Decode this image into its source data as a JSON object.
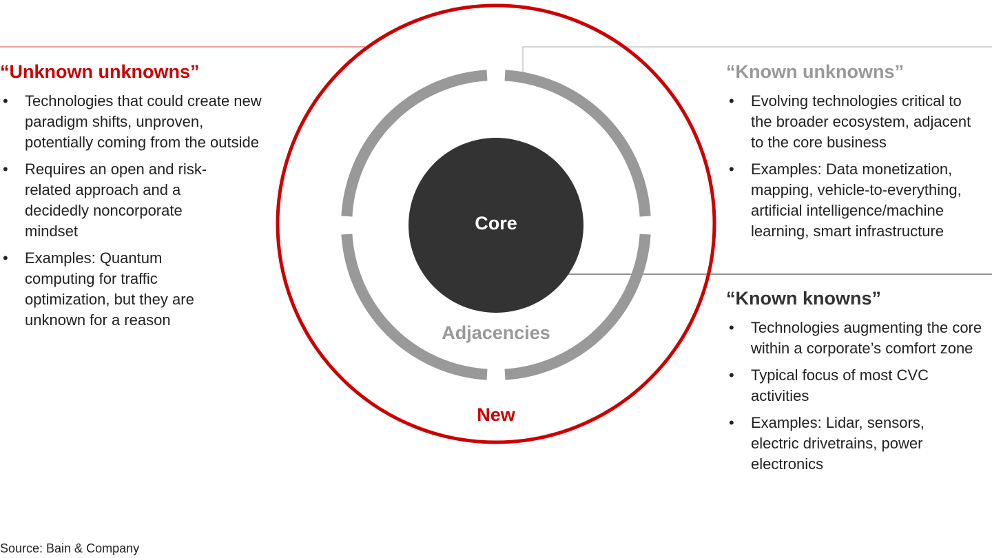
{
  "diagram": {
    "core_label": "Core",
    "adjacencies_label": "Adjacencies",
    "new_label": "New",
    "colors": {
      "red": "#cc0000",
      "ring_gray": "#999999",
      "core_dark": "#333333"
    }
  },
  "unknown_unknowns": {
    "title": "“Unknown unknowns”",
    "bullets": [
      "Technologies that could create new paradigm shifts, unproven, potentially coming from the outside",
      "Requires an open and risk-related approach and a decidedly noncorporate mindset",
      "Examples: Quantum computing for traffic optimization, but they are unknown for a reason"
    ]
  },
  "known_unknowns": {
    "title": "“Known unknowns”",
    "bullets": [
      "Evolving technologies critical to the broader ecosystem, adjacent to the core business",
      "Examples: Data monetization, mapping, vehicle-to-everything, artificial intelligence/machine learning, smart infrastructure"
    ]
  },
  "known_knowns": {
    "title": "“Known knowns”",
    "bullets": [
      "Technologies augmenting the core within a corporate’s comfort zone",
      "Typical focus of most CVC activities",
      "Examples: Lidar, sensors, electric drivetrains, power electronics"
    ]
  },
  "source": "Source: Bain & Company"
}
